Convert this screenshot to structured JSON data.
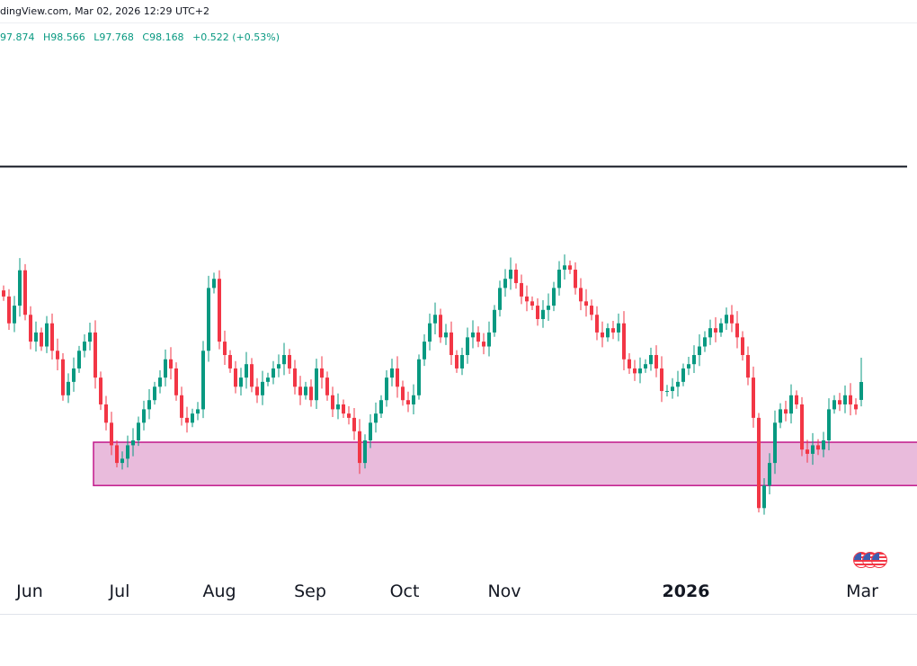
{
  "header": {
    "source_line": "dingView.com, Mar 02, 2026 12:29 UTC+2",
    "ohlc": {
      "open": "97.874",
      "high": "H98.566",
      "low": "L97.768",
      "close": "C98.168",
      "change": "+0.522 (+0.53%)"
    }
  },
  "colors": {
    "up": "#089981",
    "down": "#f23645",
    "zone_fill": "#e9bbdc",
    "zone_border": "#c2188b",
    "level_line": "#131722"
  },
  "icons": {
    "events": "us-flag-economic-events-icon"
  },
  "chart_data": {
    "type": "candlestick",
    "title": "",
    "x_tick_labels": [
      "Jun",
      "Jul",
      "Aug",
      "Sep",
      "Oct",
      "Nov",
      "2026",
      "Mar"
    ],
    "horizontal_level": 101.7,
    "zone": {
      "top": 97.18,
      "bottom": 96.47
    },
    "closes": [
      99.57,
      99.13,
      99.42,
      100.0,
      99.27,
      98.83,
      98.98,
      98.75,
      99.13,
      98.68,
      98.54,
      97.95,
      98.17,
      98.39,
      98.68,
      98.83,
      98.98,
      98.24,
      97.8,
      97.5,
      97.13,
      96.84,
      96.91,
      97.13,
      97.21,
      97.5,
      97.72,
      97.87,
      98.09,
      98.24,
      98.54,
      98.39,
      97.95,
      97.58,
      97.5,
      97.65,
      97.72,
      98.68,
      99.71,
      99.86,
      98.83,
      98.61,
      98.39,
      98.09,
      98.24,
      98.46,
      98.09,
      97.95,
      98.17,
      98.24,
      98.39,
      98.46,
      98.61,
      98.39,
      98.09,
      97.95,
      98.09,
      97.87,
      98.39,
      98.24,
      97.95,
      97.72,
      97.8,
      97.65,
      97.58,
      97.36,
      96.84,
      97.21,
      97.5,
      97.65,
      97.87,
      98.24,
      98.39,
      98.09,
      97.87,
      97.8,
      97.95,
      98.54,
      98.83,
      99.13,
      99.27,
      98.9,
      98.98,
      98.61,
      98.39,
      98.61,
      98.9,
      98.98,
      98.83,
      98.75,
      98.98,
      99.35,
      99.71,
      99.86,
      100.01,
      99.79,
      99.57,
      99.49,
      99.42,
      99.2,
      99.35,
      99.42,
      99.71,
      100.01,
      100.08,
      100.01,
      99.71,
      99.49,
      99.42,
      99.27,
      98.98,
      98.9,
      99.05,
      98.98,
      99.13,
      98.54,
      98.39,
      98.31,
      98.39,
      98.46,
      98.61,
      98.39,
      98.02,
      98.02,
      98.09,
      98.17,
      98.39,
      98.46,
      98.61,
      98.75,
      98.9,
      99.05,
      98.98,
      99.13,
      99.27,
      99.13,
      98.9,
      98.61,
      98.24,
      97.58,
      96.1,
      96.47,
      96.84,
      97.5,
      97.72,
      97.65,
      97.95,
      97.8,
      97.06,
      96.99,
      97.13,
      97.06,
      97.21,
      97.72,
      97.87,
      97.8,
      97.95,
      97.8,
      97.72,
      98.168
    ],
    "last_candle": {
      "open": 97.874,
      "high": 98.566,
      "low": 97.768,
      "close": 98.168
    }
  }
}
